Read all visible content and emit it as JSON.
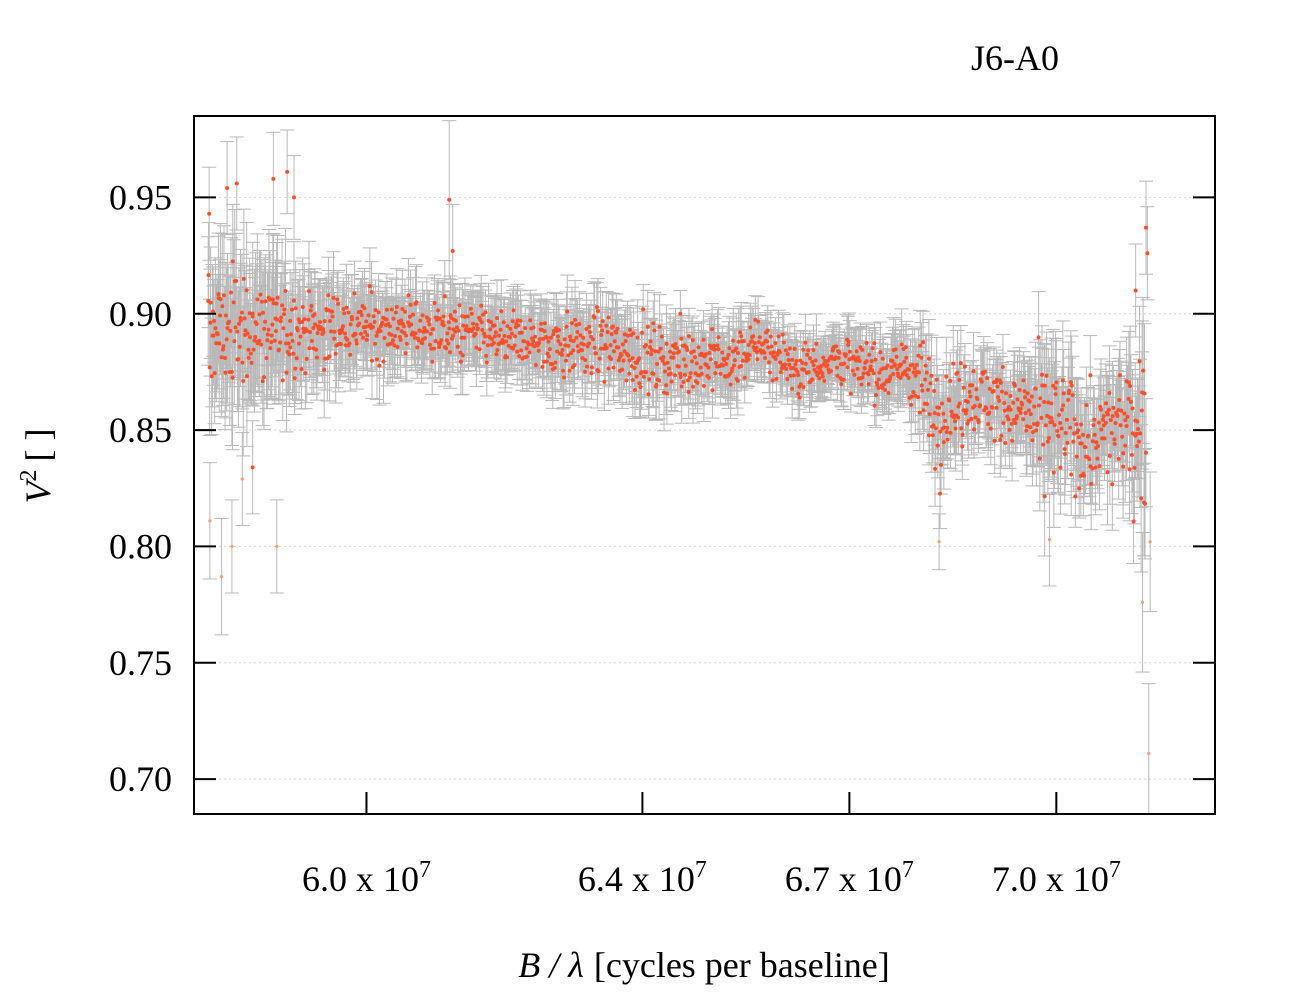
{
  "chart_data": {
    "type": "scatter",
    "title": "J6-A0",
    "xlabel": "[cycles per baseline]",
    "xlabel_symbol": "B / λ",
    "ylabel": "V",
    "ylabel_superscript": "2",
    "ylabel_unit": "[ ]",
    "xlim": [
      57500000,
      72300000
    ],
    "ylim": [
      0.685,
      0.985
    ],
    "x_ticks": [
      {
        "value": 60000000,
        "mantissa": "6.0 x 10",
        "exponent": "7"
      },
      {
        "value": 64000000,
        "mantissa": "6.4 x 10",
        "exponent": "7"
      },
      {
        "value": 67000000,
        "mantissa": "6.7 x 10",
        "exponent": "7"
      },
      {
        "value": 70000000,
        "mantissa": "7.0 x 10",
        "exponent": "7"
      }
    ],
    "y_ticks": [
      {
        "value": 0.7,
        "label": "0.70"
      },
      {
        "value": 0.75,
        "label": "0.75"
      },
      {
        "value": 0.8,
        "label": "0.80"
      },
      {
        "value": 0.85,
        "label": "0.85"
      },
      {
        "value": 0.9,
        "label": "0.90"
      },
      {
        "value": 0.95,
        "label": "0.95"
      }
    ],
    "grid": "horizontal-dotted",
    "colors": {
      "point": "#ff4f2a",
      "point_faint": "#f7a06a",
      "errorbar": "#b8b8b8",
      "grid": "#d6d6d6"
    },
    "trend": [
      {
        "x": 57700000,
        "y": 0.893,
        "sd": 0.012,
        "err": 0.025
      },
      {
        "x": 58500000,
        "y": 0.893,
        "sd": 0.012,
        "err": 0.025
      },
      {
        "x": 59200000,
        "y": 0.893,
        "sd": 0.008,
        "err": 0.018
      },
      {
        "x": 60200000,
        "y": 0.895,
        "sd": 0.007,
        "err": 0.014
      },
      {
        "x": 61200000,
        "y": 0.893,
        "sd": 0.006,
        "err": 0.013
      },
      {
        "x": 62200000,
        "y": 0.888,
        "sd": 0.006,
        "err": 0.013
      },
      {
        "x": 63500000,
        "y": 0.886,
        "sd": 0.007,
        "err": 0.013
      },
      {
        "x": 64200000,
        "y": 0.88,
        "sd": 0.007,
        "err": 0.013
      },
      {
        "x": 65300000,
        "y": 0.879,
        "sd": 0.006,
        "err": 0.012
      },
      {
        "x": 65700000,
        "y": 0.888,
        "sd": 0.005,
        "err": 0.01
      },
      {
        "x": 66300000,
        "y": 0.876,
        "sd": 0.006,
        "err": 0.01
      },
      {
        "x": 66800000,
        "y": 0.881,
        "sd": 0.005,
        "err": 0.01
      },
      {
        "x": 67400000,
        "y": 0.874,
        "sd": 0.006,
        "err": 0.011
      },
      {
        "x": 67800000,
        "y": 0.879,
        "sd": 0.006,
        "err": 0.012
      },
      {
        "x": 68300000,
        "y": 0.858,
        "sd": 0.012,
        "err": 0.016
      },
      {
        "x": 68800000,
        "y": 0.866,
        "sd": 0.008,
        "err": 0.013
      },
      {
        "x": 69400000,
        "y": 0.858,
        "sd": 0.009,
        "err": 0.014
      },
      {
        "x": 69900000,
        "y": 0.853,
        "sd": 0.013,
        "err": 0.022
      },
      {
        "x": 70500000,
        "y": 0.844,
        "sd": 0.01,
        "err": 0.016
      },
      {
        "x": 71100000,
        "y": 0.853,
        "sd": 0.013,
        "err": 0.02
      },
      {
        "x": 71300000,
        "y": 0.857,
        "sd": 0.02,
        "err": 0.028
      }
    ],
    "n_points": 1400,
    "outliers": [
      {
        "x": 57720000,
        "y": 0.943,
        "err": 0.02
      },
      {
        "x": 57730000,
        "y": 0.811,
        "err": 0.025
      },
      {
        "x": 57900000,
        "y": 0.787,
        "err": 0.025
      },
      {
        "x": 57980000,
        "y": 0.954,
        "err": 0.02
      },
      {
        "x": 58050000,
        "y": 0.8,
        "err": 0.02
      },
      {
        "x": 58120000,
        "y": 0.956,
        "err": 0.02
      },
      {
        "x": 58200000,
        "y": 0.829,
        "err": 0.02
      },
      {
        "x": 58350000,
        "y": 0.834,
        "err": 0.02
      },
      {
        "x": 58650000,
        "y": 0.958,
        "err": 0.02
      },
      {
        "x": 58700000,
        "y": 0.8,
        "err": 0.02
      },
      {
        "x": 58850000,
        "y": 0.961,
        "err": 0.018
      },
      {
        "x": 58950000,
        "y": 0.95,
        "err": 0.018
      },
      {
        "x": 61200000,
        "y": 0.949,
        "err": 0.034
      },
      {
        "x": 61250000,
        "y": 0.927,
        "err": 0.02
      },
      {
        "x": 64550000,
        "y": 0.9,
        "err": 0.01
      },
      {
        "x": 68300000,
        "y": 0.802,
        "err": 0.012
      },
      {
        "x": 69900000,
        "y": 0.803,
        "err": 0.02
      },
      {
        "x": 71150000,
        "y": 0.91,
        "err": 0.02
      },
      {
        "x": 71250000,
        "y": 0.776,
        "err": 0.03
      },
      {
        "x": 71300000,
        "y": 0.937,
        "err": 0.02
      },
      {
        "x": 71320000,
        "y": 0.926,
        "err": 0.02
      },
      {
        "x": 71340000,
        "y": 0.711,
        "err": 0.03
      },
      {
        "x": 71360000,
        "y": 0.802,
        "err": 0.03
      }
    ]
  }
}
